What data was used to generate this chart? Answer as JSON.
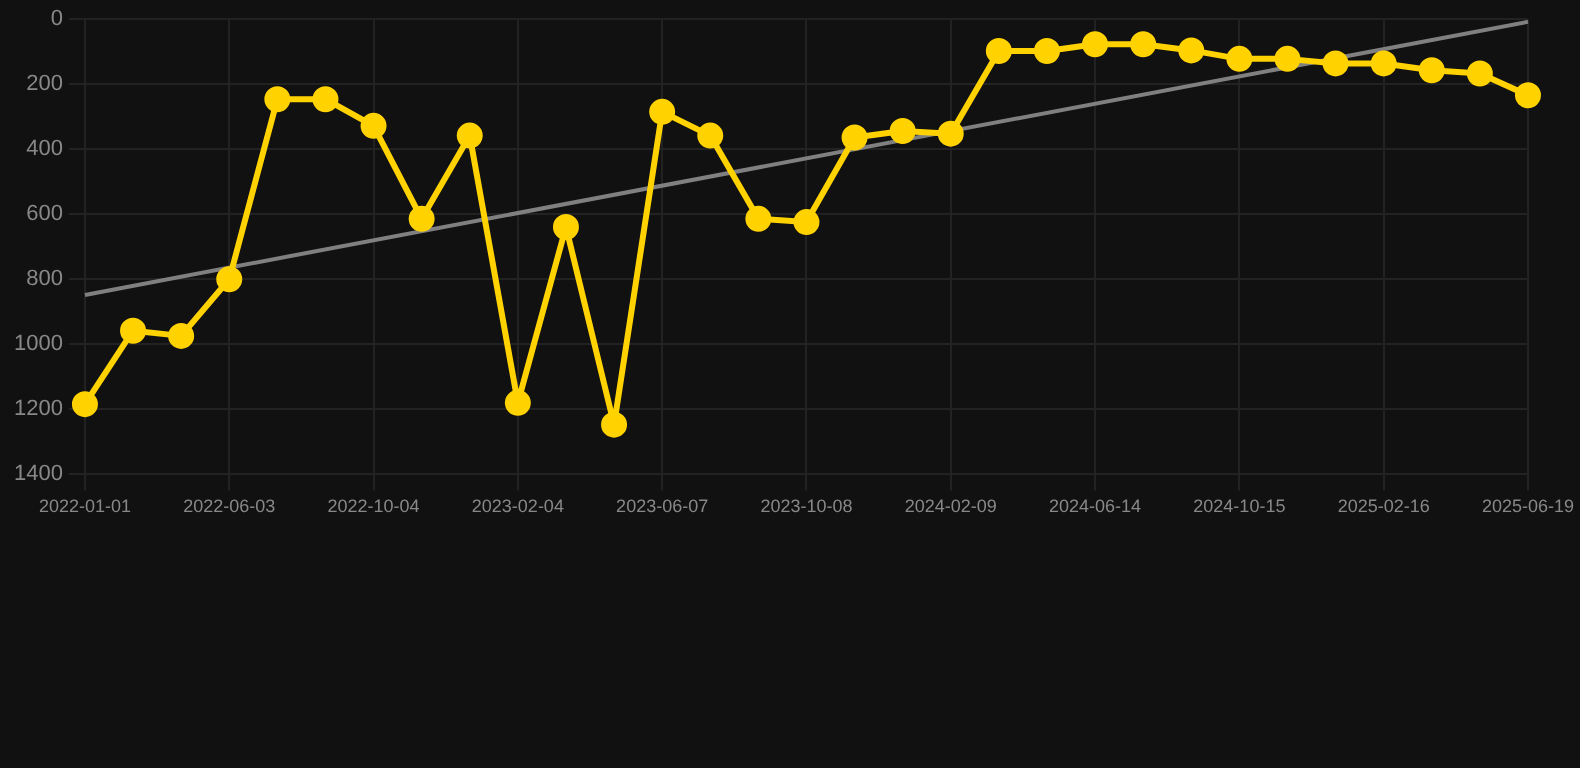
{
  "chart_data": {
    "type": "line",
    "categories": [
      "2022-01-01",
      null,
      null,
      "2022-06-03",
      null,
      null,
      "2022-10-04",
      null,
      null,
      "2023-02-04",
      null,
      null,
      "2023-06-07",
      null,
      null,
      "2023-10-08",
      null,
      null,
      "2024-02-09",
      null,
      null,
      "2024-06-14",
      null,
      null,
      "2024-10-15",
      null,
      null,
      "2025-02-16",
      null,
      null,
      "2025-06-19"
    ],
    "series": [
      {
        "color": "#ffd200",
        "marker": "circle",
        "values": [
          1184,
          958,
          974,
          800,
          246,
          246,
          328,
          614,
          358,
          1180,
          639,
          1247,
          285,
          358,
          614,
          624,
          364,
          344,
          352,
          98,
          98,
          77,
          77,
          96,
          122,
          122,
          136,
          136,
          157,
          167,
          234
        ]
      },
      {
        "type": "line",
        "color": "#808080",
        "marker": "none",
        "values": [
          848,
          null,
          null,
          null,
          null,
          null,
          null,
          null,
          null,
          null,
          null,
          null,
          null,
          null,
          null,
          null,
          null,
          null,
          null,
          null,
          null,
          null,
          null,
          null,
          null,
          null,
          null,
          null,
          null,
          null,
          8
        ]
      }
    ],
    "ylim": [
      1400,
      0
    ],
    "yticks": [
      0,
      200,
      400,
      600,
      800,
      1000,
      1200,
      1400
    ],
    "grid": true,
    "legend": false
  }
}
